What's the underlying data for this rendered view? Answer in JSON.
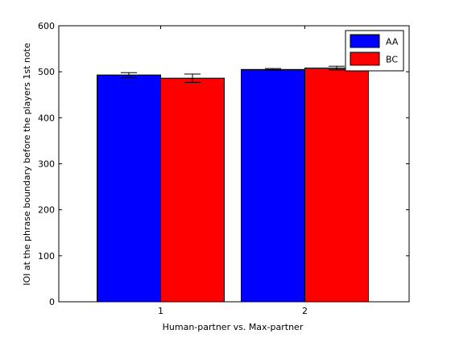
{
  "chart_data": {
    "type": "bar",
    "categories": [
      "1",
      "2"
    ],
    "series": [
      {
        "name": "AA",
        "color": "#0000ff",
        "values": [
          493,
          505
        ],
        "errors": [
          5,
          2
        ]
      },
      {
        "name": "BC",
        "color": "#ff0000",
        "values": [
          486,
          508
        ],
        "errors": [
          9,
          4
        ]
      }
    ],
    "xlabel": "Human-partner vs. Max-partner",
    "ylabel": "IOI at the phrase boundary before the players 1st note",
    "ylim": [
      0,
      600
    ],
    "yticks": [
      0,
      100,
      200,
      300,
      400,
      500,
      600
    ],
    "grid": false,
    "legend_position": "top-right"
  }
}
